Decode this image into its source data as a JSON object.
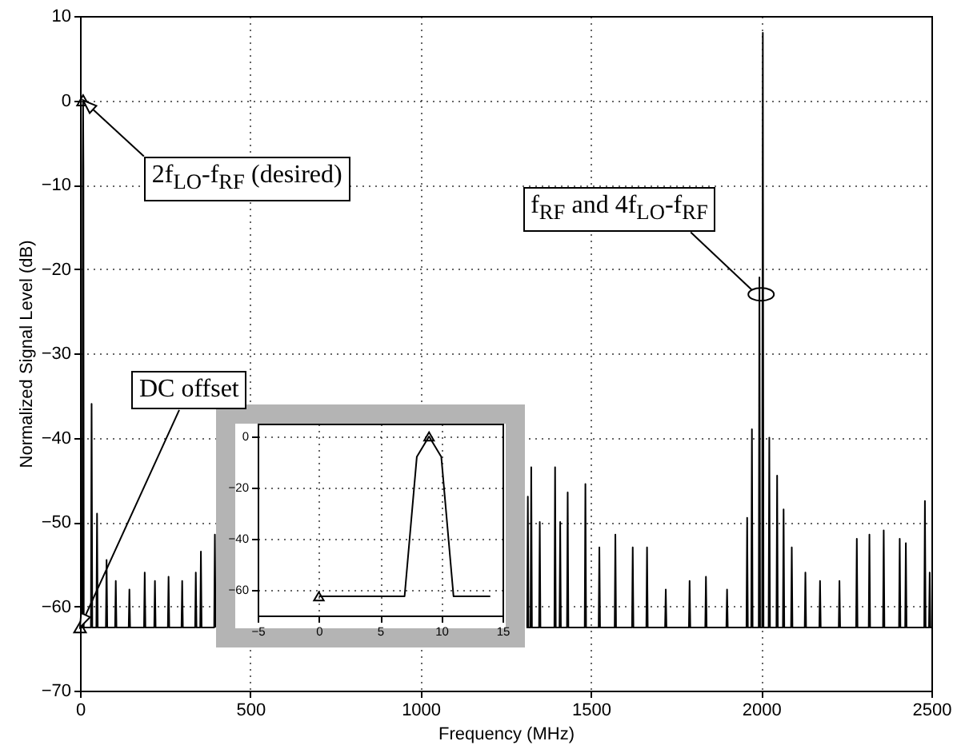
{
  "chart_data": [
    {
      "type": "line",
      "xlabel": "Frequency (MHz)",
      "ylabel": "Normalized Signal Level (dB)",
      "xlim": [
        0,
        2500
      ],
      "ylim": [
        -70,
        10
      ],
      "xticks": [
        0,
        500,
        1000,
        1500,
        2000,
        2500
      ],
      "yticks": [
        -70,
        -60,
        -50,
        -40,
        -30,
        -20,
        -10,
        0,
        10
      ],
      "grid": true,
      "line_style": "solid",
      "series": [
        {
          "type": "line",
          "color": "#000000",
          "x": [
            0,
            7,
            8,
            9,
            10,
            11,
            32,
            34,
            36,
            48,
            50,
            52,
            76,
            78,
            80,
            103,
            105,
            107,
            143,
            145,
            147,
            188,
            190,
            192,
            218,
            220,
            222,
            258,
            260,
            262,
            298,
            300,
            302,
            338,
            340,
            342,
            353,
            355,
            357,
            394,
            396,
            398,
            800,
            1311,
            1313,
            1315,
            1317,
            1323,
            1325,
            1327,
            1348,
            1350,
            1352,
            1393,
            1395,
            1397,
            1408,
            1410,
            1412,
            1430,
            1432,
            1434,
            1482,
            1484,
            1486,
            1523,
            1525,
            1527,
            1570,
            1572,
            1574,
            1621,
            1623,
            1625,
            1663,
            1665,
            1667,
            1718,
            1720,
            1722,
            1788,
            1790,
            1792,
            1836,
            1838,
            1840,
            1898,
            1900,
            1902,
            1957,
            1959,
            1961,
            1971,
            1973,
            1975,
            1993,
            1995,
            1997,
            2003,
            2005,
            2007,
            2022,
            2024,
            2026,
            2045,
            2047,
            2049,
            2064,
            2066,
            2068,
            2088,
            2090,
            2092,
            2128,
            2130,
            2132,
            2171,
            2173,
            2175,
            2228,
            2230,
            2232,
            2279,
            2281,
            2283,
            2316,
            2318,
            2320,
            2358,
            2360,
            2362,
            2405,
            2407,
            2409,
            2423,
            2425,
            2427,
            2479,
            2481,
            2483,
            2493,
            2495,
            2497,
            2500
          ],
          "values": [
            -62.5,
            -62.5,
            -8,
            0,
            -8,
            -62.5,
            -62.5,
            -36,
            -62.5,
            -62.5,
            -49,
            -62.5,
            -62.5,
            -54.5,
            -62.5,
            -62.5,
            -57,
            -62.5,
            -62.5,
            -58,
            -62.5,
            -62.5,
            -56,
            -62.5,
            -62.5,
            -57,
            -62.5,
            -62.5,
            -56.5,
            -62.5,
            -62.5,
            -57,
            -62.5,
            -62.5,
            -56,
            -62.5,
            -62.5,
            -53.5,
            -62.5,
            -62.5,
            -51.5,
            -62.5,
            null,
            -62.5,
            -62.5,
            -47,
            -62.5,
            -62.5,
            -43.5,
            -62.5,
            -62.5,
            -50,
            -62.5,
            -62.5,
            -43.5,
            -62.5,
            -62.5,
            -50,
            -62.5,
            -62.5,
            -46.5,
            -62.5,
            -62.5,
            -45.5,
            -62.5,
            -62.5,
            -53,
            -62.5,
            -62.5,
            -51.5,
            -62.5,
            -62.5,
            -53,
            -62.5,
            -62.5,
            -53,
            -62.5,
            -62.5,
            -58,
            -62.5,
            -62.5,
            -57,
            -62.5,
            -62.5,
            -56.5,
            -62.5,
            -62.5,
            -58,
            -62.5,
            -62.5,
            -49.5,
            -62.5,
            -62.5,
            -39,
            -62.5,
            -62.5,
            -21,
            -62.5,
            -62.5,
            8,
            -62.5,
            -62.5,
            -40,
            -62.5,
            -62.5,
            -44.5,
            -62.5,
            -62.5,
            -48.5,
            -62.5,
            -62.5,
            -53,
            -62.5,
            -62.5,
            -56,
            -62.5,
            -62.5,
            -57,
            -62.5,
            -62.5,
            -57,
            -62.5,
            -62.5,
            -52,
            -62.5,
            -62.5,
            -51.5,
            -62.5,
            -62.5,
            -51,
            -62.5,
            -62.5,
            -52,
            -62.5,
            -62.5,
            -52.5,
            -62.5,
            -62.5,
            -47.5,
            -62.5,
            -62.5,
            -56,
            -62.5,
            -62.5
          ]
        },
        {
          "type": "scatter",
          "marker": "triangle",
          "color": "#000000",
          "x": [
            0,
            9
          ],
          "values": [
            -62.5,
            0
          ]
        }
      ],
      "annotations": [
        {
          "text": "2f$_{LO}$-f$_{RF}$ (desired)",
          "x": 9,
          "y": 0
        },
        {
          "text": "f$_{RF}$ and 4f$_{LO}$-f$_{RF}$",
          "x": 2000,
          "y": -23
        },
        {
          "text": "DC offset",
          "x": 0,
          "y": -62.5
        }
      ]
    },
    {
      "type": "line",
      "xlim": [
        -5,
        15
      ],
      "ylim": [
        -70,
        5
      ],
      "xticks": [
        -5,
        0,
        5,
        10,
        15
      ],
      "yticks": [
        -60,
        -40,
        -20,
        0
      ],
      "grid": true,
      "line_style": "solid",
      "series": [
        {
          "type": "line",
          "color": "#000000",
          "x": [
            0,
            7,
            8,
            9,
            10,
            11,
            14
          ],
          "values": [
            -62.5,
            -62.5,
            -8,
            0,
            -8,
            -62.5,
            -62.5
          ]
        },
        {
          "type": "scatter",
          "marker": "triangle",
          "color": "#000000",
          "x": [
            0,
            9
          ],
          "values": [
            -62.5,
            0
          ]
        }
      ]
    }
  ]
}
